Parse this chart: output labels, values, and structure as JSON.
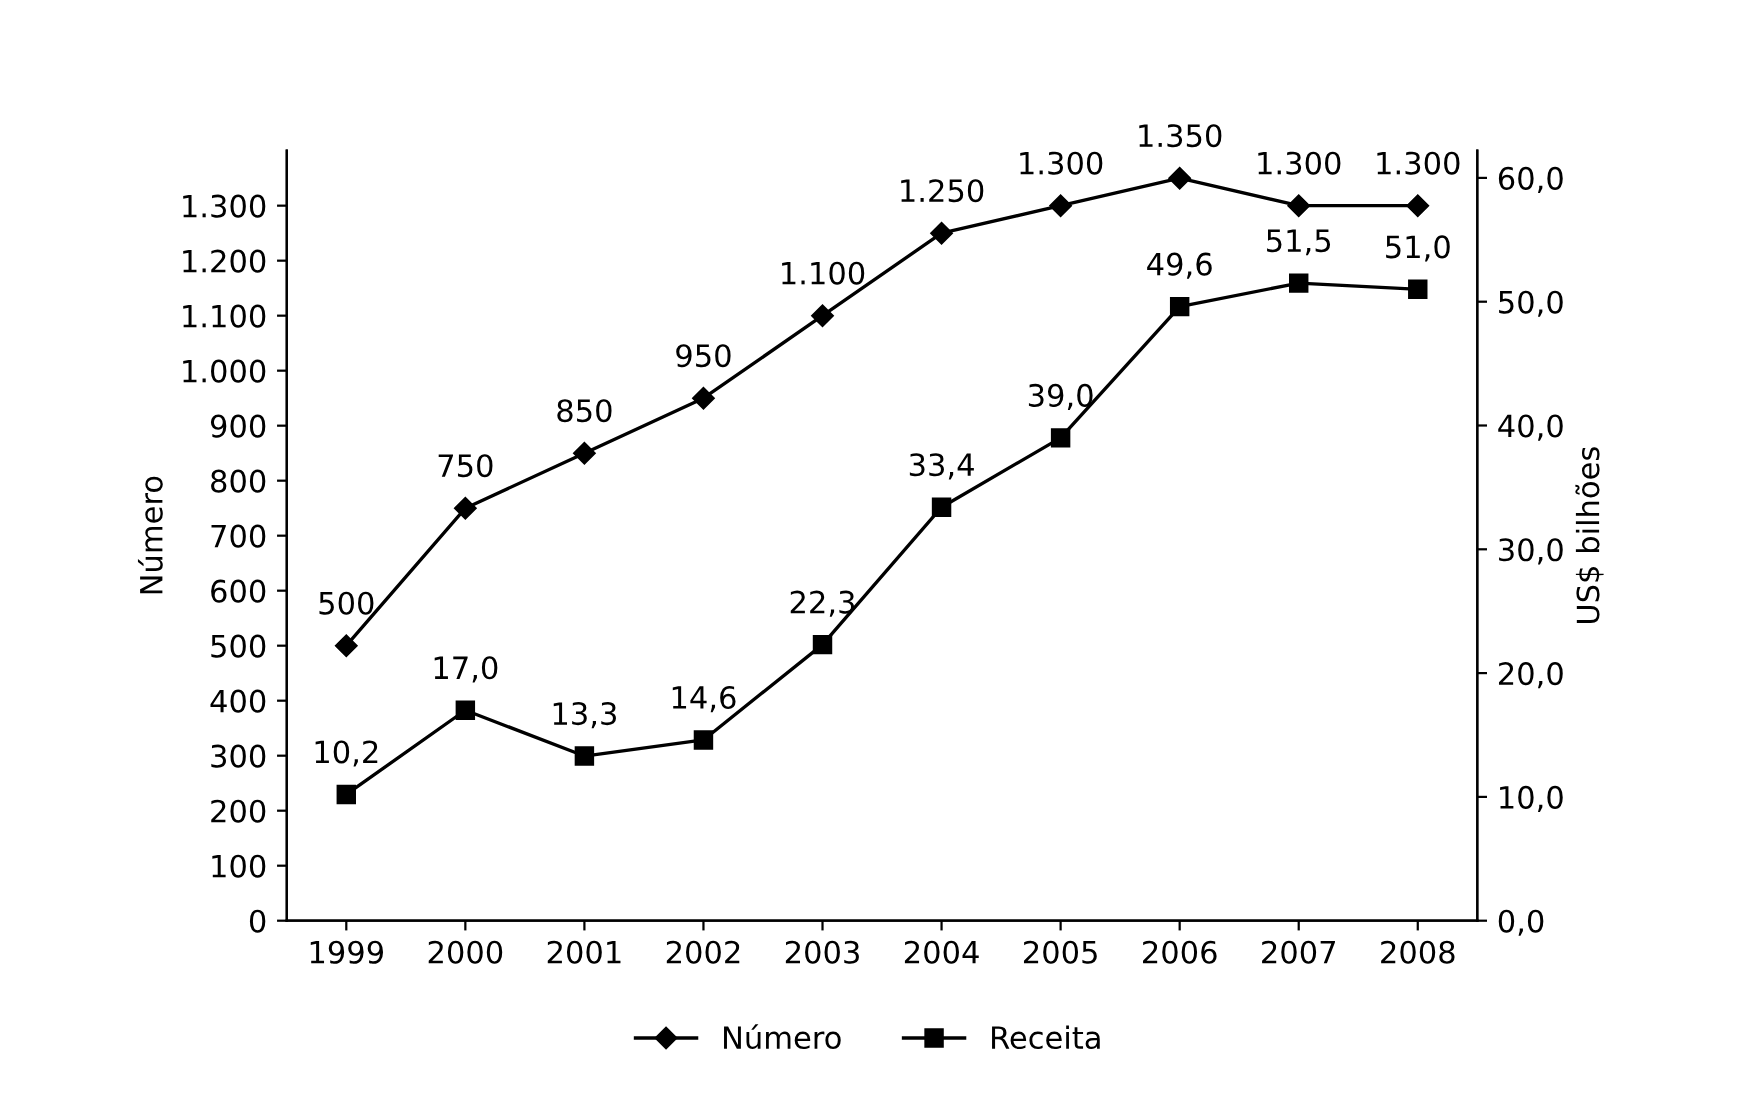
{
  "chart_data": {
    "type": "line",
    "categories": [
      "1999",
      "2000",
      "2001",
      "2002",
      "2003",
      "2004",
      "2005",
      "2006",
      "2007",
      "2008"
    ],
    "ylabel": "Número",
    "y2label": "US$ bilhões",
    "series": [
      {
        "name": "Número",
        "color": "#000000",
        "marker": "diamond",
        "values": [
          500,
          750,
          850,
          950,
          1100,
          1250,
          1300,
          1350,
          1300,
          1300
        ],
        "value_labels": [
          "500",
          "750",
          "850",
          "950",
          "1.100",
          "1.250",
          "1.300",
          "1.350",
          "1.300",
          "1.300"
        ]
      },
      {
        "name": "Receita",
        "color": "#000000",
        "marker": "square",
        "axis": "y2",
        "values": [
          10.2,
          17.0,
          13.3,
          14.6,
          22.3,
          33.4,
          39.0,
          49.6,
          51.5,
          51.0
        ],
        "value_labels": [
          "10,2",
          "17,0",
          "13,3",
          "14,6",
          "22,3",
          "33,4",
          "39,0",
          "49,6",
          "51,5",
          "51,0"
        ]
      }
    ],
    "ylim": [
      0,
      1400
    ],
    "yticks": [
      0,
      100,
      200,
      300,
      400,
      500,
      600,
      700,
      800,
      900,
      {
        "value": 1000,
        "label": "1.000"
      },
      {
        "value": 1100,
        "label": "1.100"
      },
      {
        "value": 1200,
        "label": "1.200"
      },
      {
        "value": 1300,
        "label": "1.300"
      }
    ],
    "y2lim": [
      0,
      62.2
    ],
    "y2ticks": [
      {
        "value": 0,
        "label": "0,0"
      },
      {
        "value": 10,
        "label": "10,0"
      },
      {
        "value": 20,
        "label": "20,0"
      },
      {
        "value": 30,
        "label": "30,0"
      },
      {
        "value": 40,
        "label": "40,0"
      },
      {
        "value": 50,
        "label": "50,0"
      },
      {
        "value": 60,
        "label": "60,0"
      }
    ],
    "grid": false,
    "legend": "bottom",
    "line_style": "solid"
  }
}
